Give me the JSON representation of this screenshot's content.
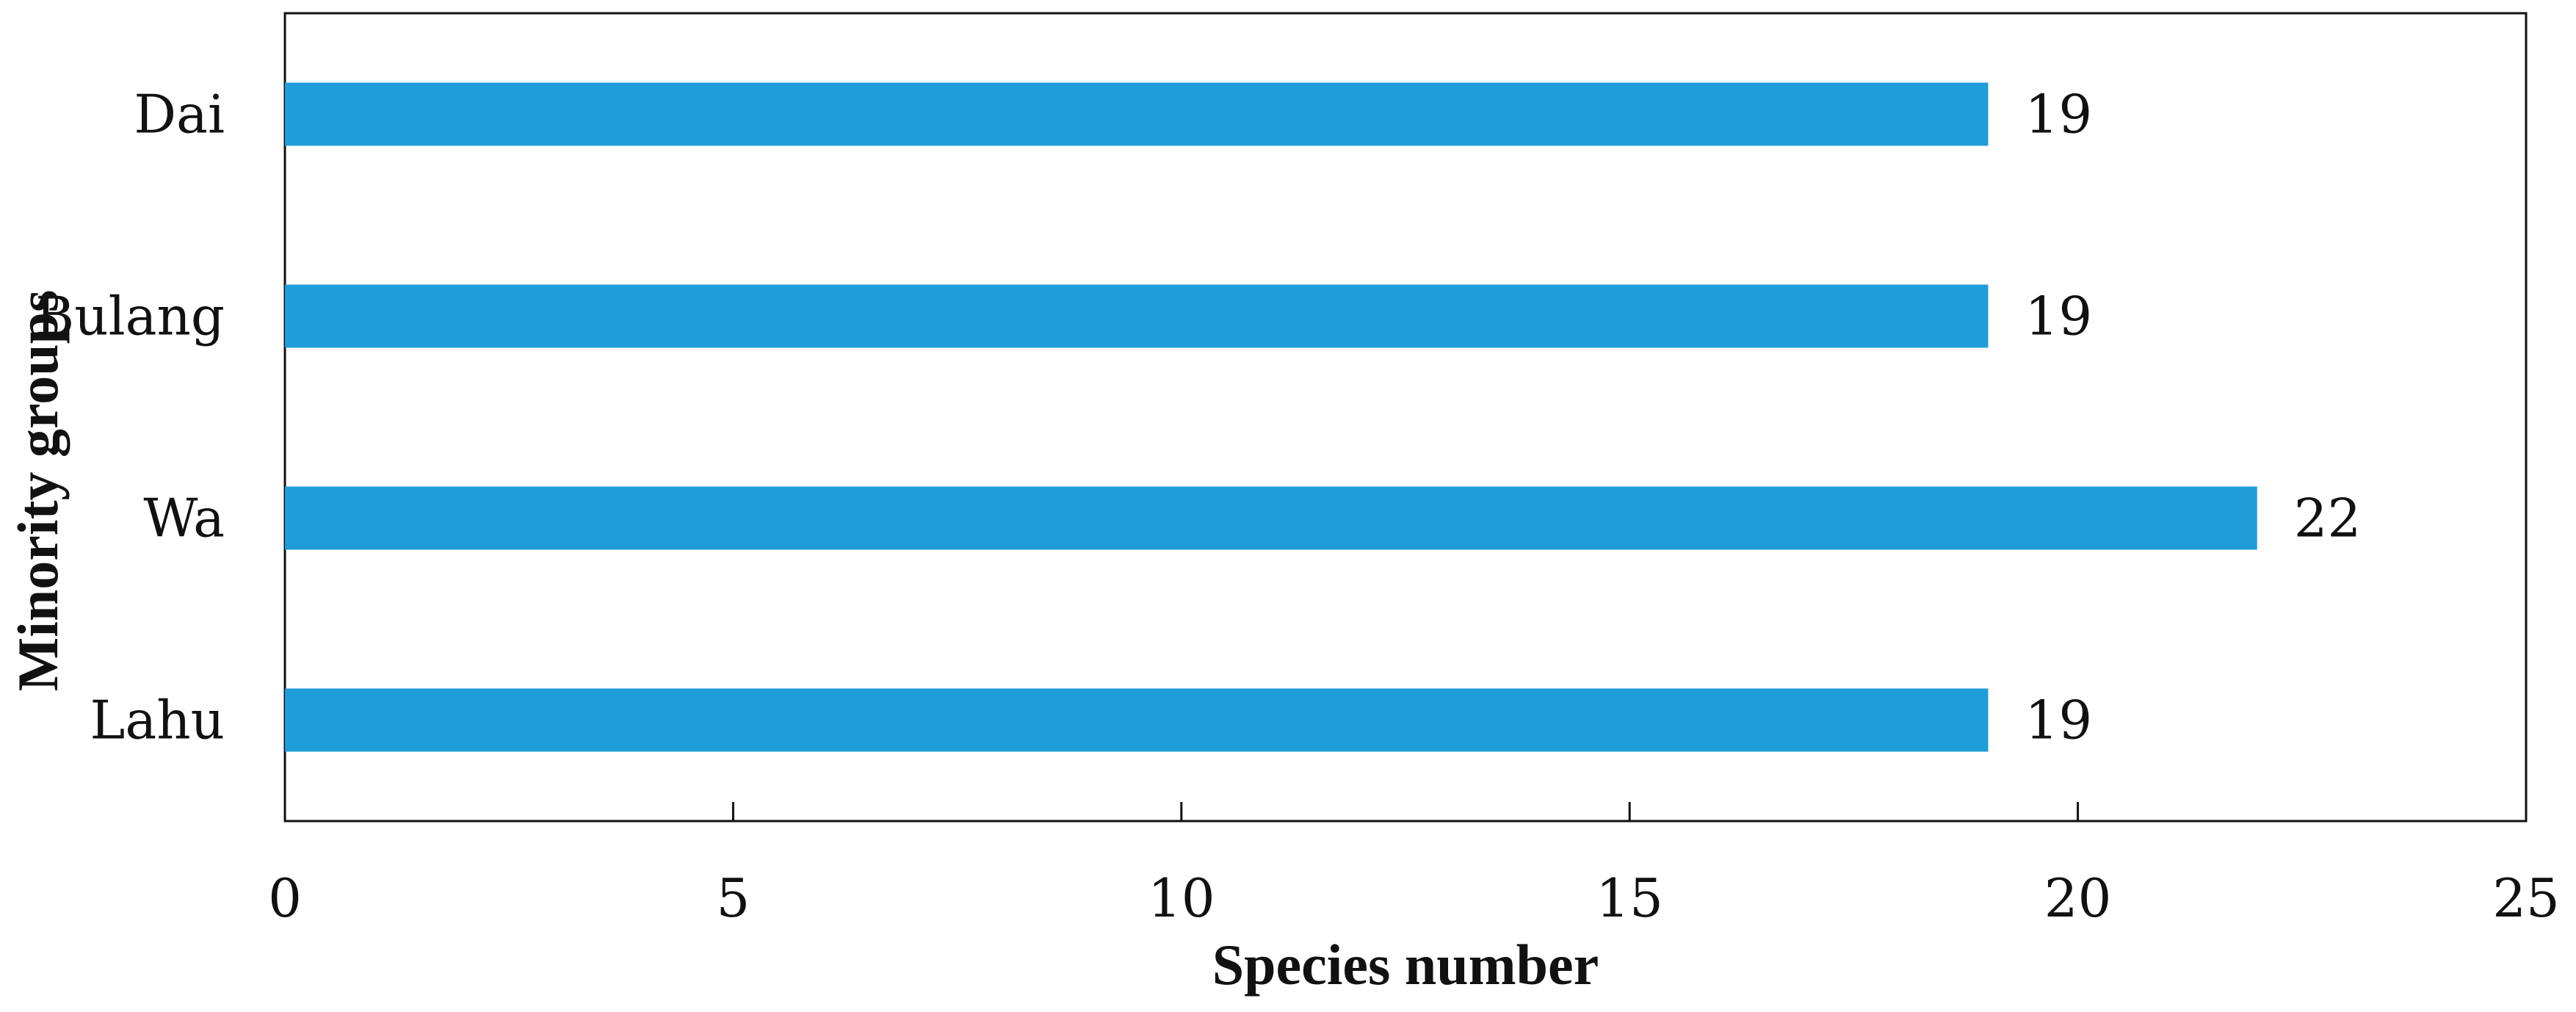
{
  "chart_data": {
    "type": "bar",
    "orientation": "horizontal",
    "title": "",
    "xlabel": "Species number",
    "ylabel": "Minority groups",
    "categories": [
      "Dai",
      "Bulang",
      "Wa",
      "Lahu"
    ],
    "values": [
      19,
      19,
      22,
      19
    ],
    "value_labels": [
      "19",
      "19",
      "22",
      "19"
    ],
    "xlim": [
      0,
      25
    ],
    "xticks": [
      0,
      5,
      10,
      15,
      20,
      25
    ],
    "xtick_labels": [
      "0",
      "5",
      "10",
      "15",
      "20",
      "25"
    ],
    "grid": false,
    "legend": "none",
    "bar_color": "#1f9dd9"
  }
}
